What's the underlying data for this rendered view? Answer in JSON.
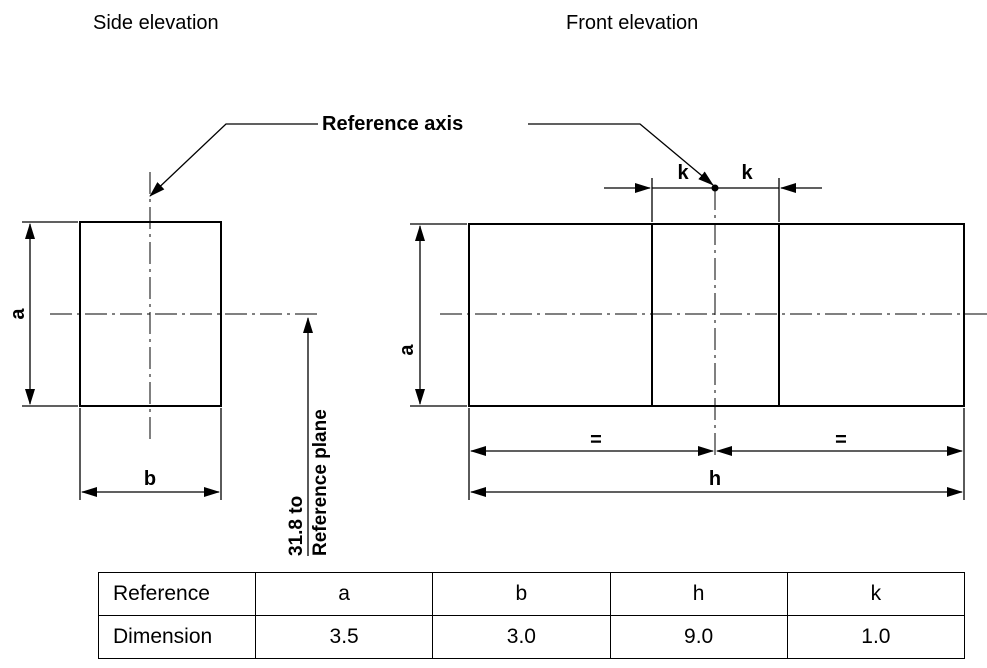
{
  "views": {
    "side_title": "Side elevation",
    "front_title": "Front elevation"
  },
  "labels": {
    "reference_axis": "Reference axis",
    "reference_plane_line1": "31.8 to",
    "reference_plane_line2": "Reference plane",
    "a": "a",
    "b": "b",
    "h": "h",
    "k": "k",
    "equal": "="
  },
  "table": {
    "row_headers": [
      "Reference",
      "Dimension"
    ],
    "columns": [
      "a",
      "b",
      "h",
      "k"
    ],
    "values": [
      "3.5",
      "3.0",
      "9.0",
      "1.0"
    ]
  }
}
